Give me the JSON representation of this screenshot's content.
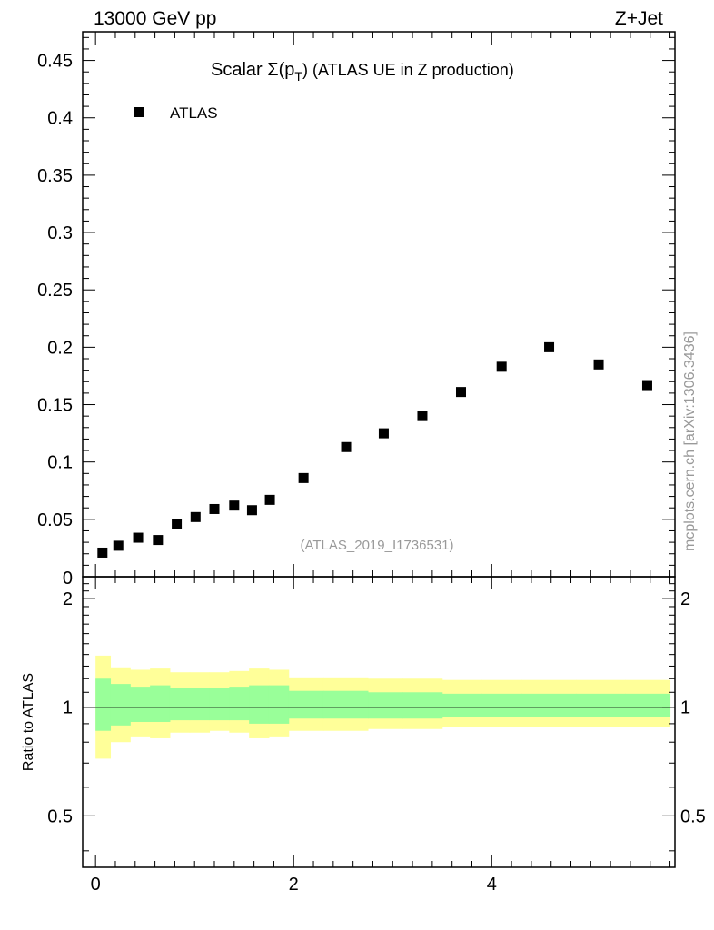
{
  "header": {
    "left": "13000 GeV pp",
    "right": "Z+Jet"
  },
  "side_text": "mcplots.cern.ch [arXiv:1306.3436]",
  "chart_data": [
    {
      "type": "scatter",
      "title_main": "Scalar Σ(p",
      "title_sub": "T",
      "title_rest": ") (ATLAS UE in Z production)",
      "analysis_label": "(ATLAS_2019_I1736531)",
      "legend": [
        {
          "name": "ATLAS",
          "marker": "square",
          "color": "#000000"
        }
      ],
      "xlim": [
        -0.13,
        5.85
      ],
      "ylim": [
        0,
        0.475
      ],
      "yticks": [
        0.05,
        0.1,
        0.15,
        0.2,
        0.25,
        0.3,
        0.35,
        0.4,
        0.45
      ],
      "yticklabels": [
        "0.05",
        "0.1",
        "0.15",
        "0.2",
        "0.25",
        "0.3",
        "0.35",
        "0.4",
        "0.45"
      ],
      "y_zero_label": "0",
      "series": [
        {
          "name": "ATLAS",
          "x": [
            0.07,
            0.23,
            0.43,
            0.63,
            0.82,
            1.01,
            1.2,
            1.4,
            1.58,
            1.76,
            2.1,
            2.53,
            2.91,
            3.3,
            3.69,
            4.1,
            4.58,
            5.08,
            5.57
          ],
          "y": [
            0.021,
            0.027,
            0.034,
            0.032,
            0.046,
            0.052,
            0.059,
            0.062,
            0.058,
            0.067,
            0.086,
            0.113,
            0.125,
            0.14,
            0.161,
            0.183,
            0.2,
            0.185,
            0.167
          ]
        }
      ]
    },
    {
      "type": "area",
      "ylabel": "Ratio to ATLAS",
      "ylim": [
        0.36,
        2.3
      ],
      "yticks": [
        0.5,
        1,
        2
      ],
      "yticklabels": [
        "0.5",
        "1",
        "2"
      ],
      "xlim": [
        -0.13,
        5.85
      ],
      "xticks": [
        0,
        2,
        4
      ],
      "xticklabels": [
        "0",
        "2",
        "4"
      ],
      "reference_line": 1,
      "bins": [
        0,
        0.15,
        0.35,
        0.55,
        0.75,
        0.95,
        1.15,
        1.35,
        1.55,
        1.75,
        1.95,
        2.3,
        2.75,
        3.1,
        3.5,
        3.9,
        4.3,
        4.85,
        5.35,
        5.8
      ],
      "bands": [
        {
          "name": "stat+syst uncertainty (yellow)",
          "color": "#ffff99",
          "lo": [
            0.72,
            0.8,
            0.83,
            0.82,
            0.85,
            0.85,
            0.86,
            0.85,
            0.82,
            0.83,
            0.86,
            0.86,
            0.87,
            0.87,
            0.88,
            0.88,
            0.88,
            0.88,
            0.88
          ],
          "hi": [
            1.39,
            1.29,
            1.27,
            1.28,
            1.25,
            1.25,
            1.25,
            1.26,
            1.28,
            1.27,
            1.21,
            1.21,
            1.2,
            1.2,
            1.19,
            1.19,
            1.19,
            1.19,
            1.19
          ]
        },
        {
          "name": "stat uncertainty (green)",
          "color": "#99ff99",
          "lo": [
            0.86,
            0.89,
            0.91,
            0.91,
            0.92,
            0.92,
            0.92,
            0.92,
            0.9,
            0.9,
            0.93,
            0.93,
            0.93,
            0.93,
            0.94,
            0.94,
            0.94,
            0.94,
            0.94
          ],
          "hi": [
            1.2,
            1.16,
            1.14,
            1.15,
            1.13,
            1.13,
            1.13,
            1.14,
            1.15,
            1.15,
            1.11,
            1.11,
            1.1,
            1.1,
            1.09,
            1.09,
            1.09,
            1.09,
            1.09
          ]
        }
      ]
    }
  ]
}
